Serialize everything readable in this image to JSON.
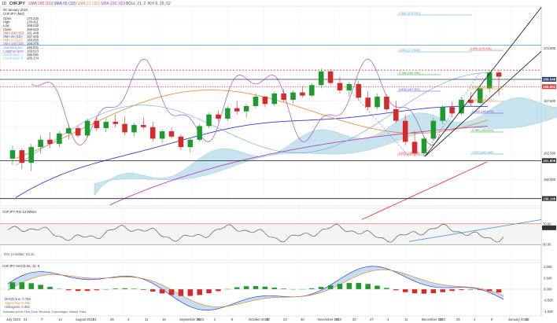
{
  "toolbar": {
    "period": "1D",
    "symbol": "CHFJPY",
    "indicators": [
      "SMA 200 (1D)",
      "SMA 55 (1D)",
      "SMA 21 (1D)",
      "SMA 100 (1D)",
      "BOLL 21, 2",
      "IKH 9, 26, 52"
    ],
    "indicator_colors": [
      "#e23c3c",
      "#3a3ad6",
      "#e08a2a",
      "#c040c0",
      "#555555",
      "#555555"
    ]
  },
  "info_panel": {
    "date": "08 January 2024",
    "name": "CHFJPY (Mid)",
    "rows": [
      {
        "label": "Open",
        "value": "170.220",
        "color": "#333333"
      },
      {
        "label": "High",
        "value": "170.411",
        "color": "#333333"
      },
      {
        "label": "Low",
        "value": "168.032",
        "color": "#333333"
      },
      {
        "label": "Close",
        "value": "169.823",
        "color": "#333333"
      },
      {
        "label": "SMA 200 (1D)",
        "value": "161.448",
        "color": "#e23c3c"
      },
      {
        "label": "SMA 55 (1D)",
        "value": "167.426",
        "color": "#3a3ad6"
      },
      {
        "label": "SMA 21 (1D)",
        "value": "168.855",
        "color": "#e08a2a"
      },
      {
        "label": "SMA 100 (1D)",
        "value": "166.275",
        "color": "#c040c0"
      },
      {
        "label": "Standard line",
        "value": "166.931",
        "color": "#6aa3d8"
      },
      {
        "label": "Lagging Span",
        "value": "169.823",
        "color": "#a050d0"
      },
      {
        "label": "Cloud span A",
        "value": "168.091",
        "color": "#7ec7e0"
      },
      {
        "label": "Cloud span B",
        "value": "165.274",
        "color": "#7ec7e0"
      }
    ]
  },
  "price_axis": {
    "ticks": [
      "172.500",
      "167.500",
      "162.500",
      "160.000"
    ],
    "boxes": [
      {
        "value": "169.546",
        "color": "#2a3a6a"
      },
      {
        "value": "168.851",
        "color": "#e23c3c"
      },
      {
        "value": "161.808",
        "color": "#222222"
      },
      {
        "value": "158.198",
        "color": "#222222"
      }
    ]
  },
  "fib_levels": [
    {
      "text": "1.382 (173.930)",
      "color": "#4aa0d8"
    },
    {
      "text": "1.000 (172.808)",
      "color": "#4aa0d8"
    },
    {
      "text": "0.000 (170.428)",
      "color": "#e23c3c"
    },
    {
      "text": "0.786 (168.796)",
      "color": "#2a9a3a"
    },
    {
      "text": "0.618 (167.397)",
      "color": "#4a4ad0"
    },
    {
      "text": "0.382 (167.929)",
      "color": "#e08a2a"
    },
    {
      "text": "0.500 (166.913)",
      "color": "#e08a2a"
    },
    {
      "text": "0.618 (165.879)",
      "color": "#4a4ad0"
    },
    {
      "text": "0.786 (164.023)",
      "color": "#2a9a3a"
    },
    {
      "text": "1.000 (162.168)",
      "color": "#4aa0d8"
    },
    {
      "text": "0.000 (162.168)",
      "color": "#e23c3c"
    }
  ],
  "rsi_panel": {
    "title": "CHFJPY  RSI 14 Wilder",
    "legend": "RSI 14 Wilder: 62.32",
    "ticks": [
      "70.00",
      "62.32",
      "30.00"
    ]
  },
  "macd_panel": {
    "title": "CHFJPY  MACD 26, 12, 9",
    "legend": [
      "MACD line: 0.758",
      "Signal line: 0.296",
      "Histogram: 0.462"
    ],
    "ticks": [
      "1.000",
      "0.500",
      "0.000",
      "-0.500",
      "-1.000"
    ]
  },
  "footer": {
    "note": "Indicative prices   Time Zone: Brussels, Copenhagen, Madrid, Paris"
  },
  "chart_data": {
    "type": "candlestick",
    "symbol": "CHFJPY",
    "period": "1D",
    "x_date_labels": [
      "July 2023",
      "31",
      "7",
      "14",
      "August 2023",
      "21",
      "28",
      "4",
      "11",
      "18",
      "September 2023",
      "25",
      "2",
      "9",
      "October 2023",
      "16",
      "23",
      "30",
      "November 2023",
      "13",
      "20",
      "27",
      "4",
      "11",
      "December 2023",
      "18",
      "25",
      "1",
      "8",
      "January 2024",
      "22"
    ],
    "ohlc_approx": [
      [
        162.0,
        163.2,
        161.4,
        162.8
      ],
      [
        162.8,
        163.0,
        161.0,
        161.6
      ],
      [
        161.6,
        163.4,
        160.8,
        163.1
      ],
      [
        163.1,
        164.2,
        162.5,
        163.8
      ],
      [
        163.8,
        164.5,
        163.0,
        163.4
      ],
      [
        163.4,
        164.6,
        163.1,
        164.4
      ],
      [
        164.4,
        165.3,
        163.8,
        164.9
      ],
      [
        164.9,
        165.1,
        164.0,
        164.2
      ],
      [
        164.2,
        165.8,
        164.0,
        165.6
      ],
      [
        165.6,
        166.0,
        164.6,
        164.9
      ],
      [
        164.9,
        165.8,
        164.5,
        165.5
      ],
      [
        165.5,
        166.2,
        165.0,
        165.3
      ],
      [
        165.3,
        166.0,
        164.2,
        164.5
      ],
      [
        164.5,
        165.4,
        164.1,
        165.2
      ],
      [
        165.2,
        165.9,
        164.8,
        165.0
      ],
      [
        165.0,
        165.5,
        163.6,
        163.9
      ],
      [
        163.9,
        164.8,
        163.5,
        164.6
      ],
      [
        164.6,
        165.0,
        163.9,
        164.1
      ],
      [
        164.1,
        164.3,
        162.8,
        163.1
      ],
      [
        163.1,
        164.0,
        162.6,
        163.8
      ],
      [
        163.8,
        165.3,
        163.6,
        165.1
      ],
      [
        165.1,
        166.4,
        164.9,
        166.2
      ],
      [
        166.2,
        166.6,
        165.5,
        165.8
      ],
      [
        165.8,
        167.0,
        165.6,
        166.8
      ],
      [
        166.8,
        167.5,
        166.2,
        166.5
      ],
      [
        166.5,
        167.2,
        165.9,
        167.0
      ],
      [
        167.0,
        168.2,
        166.8,
        167.9
      ],
      [
        167.9,
        168.0,
        166.9,
        167.2
      ],
      [
        167.2,
        168.4,
        167.0,
        168.2
      ],
      [
        168.2,
        168.6,
        167.4,
        167.6
      ],
      [
        167.6,
        168.5,
        167.2,
        168.3
      ],
      [
        168.3,
        168.9,
        167.8,
        168.0
      ],
      [
        168.0,
        169.2,
        167.9,
        169.0
      ],
      [
        169.0,
        170.6,
        168.7,
        170.3
      ],
      [
        170.3,
        170.5,
        169.0,
        169.2
      ],
      [
        169.2,
        169.8,
        168.2,
        168.5
      ],
      [
        168.5,
        169.3,
        167.9,
        169.1
      ],
      [
        169.1,
        169.4,
        167.6,
        167.8
      ],
      [
        167.8,
        168.4,
        166.6,
        166.9
      ],
      [
        166.9,
        168.2,
        166.7,
        167.9
      ],
      [
        167.9,
        168.1,
        166.5,
        166.7
      ],
      [
        166.7,
        167.5,
        165.4,
        165.6
      ],
      [
        165.6,
        166.2,
        163.3,
        163.6
      ],
      [
        163.6,
        164.6,
        162.2,
        162.5
      ],
      [
        162.5,
        164.1,
        162.2,
        163.9
      ],
      [
        163.9,
        165.9,
        163.7,
        165.6
      ],
      [
        165.6,
        167.1,
        165.3,
        166.9
      ],
      [
        166.9,
        167.4,
        165.9,
        166.3
      ],
      [
        166.3,
        167.9,
        166.1,
        167.6
      ],
      [
        167.6,
        168.3,
        167.0,
        167.3
      ],
      [
        167.3,
        169.0,
        167.2,
        168.7
      ],
      [
        168.7,
        170.4,
        168.3,
        170.2
      ],
      [
        170.2,
        170.4,
        168.0,
        169.8
      ]
    ],
    "series": [
      {
        "name": "SMA 200 (1D)",
        "last": 161.448
      },
      {
        "name": "SMA 55 (1D)",
        "last": 167.426
      },
      {
        "name": "SMA 21 (1D)",
        "last": 168.855
      },
      {
        "name": "SMA 100 (1D)",
        "last": 166.275
      },
      {
        "name": "Lagging Span",
        "last": 169.823
      }
    ],
    "horizontal_levels": [
      172.808,
      170.428,
      169.546,
      168.851,
      161.808,
      158.198
    ],
    "rsi": {
      "value": 62.32,
      "bands": [
        70,
        30
      ]
    },
    "macd": {
      "macd": 0.758,
      "signal": 0.296,
      "histogram": 0.462
    },
    "grid": true,
    "legend_position": "top-left"
  }
}
